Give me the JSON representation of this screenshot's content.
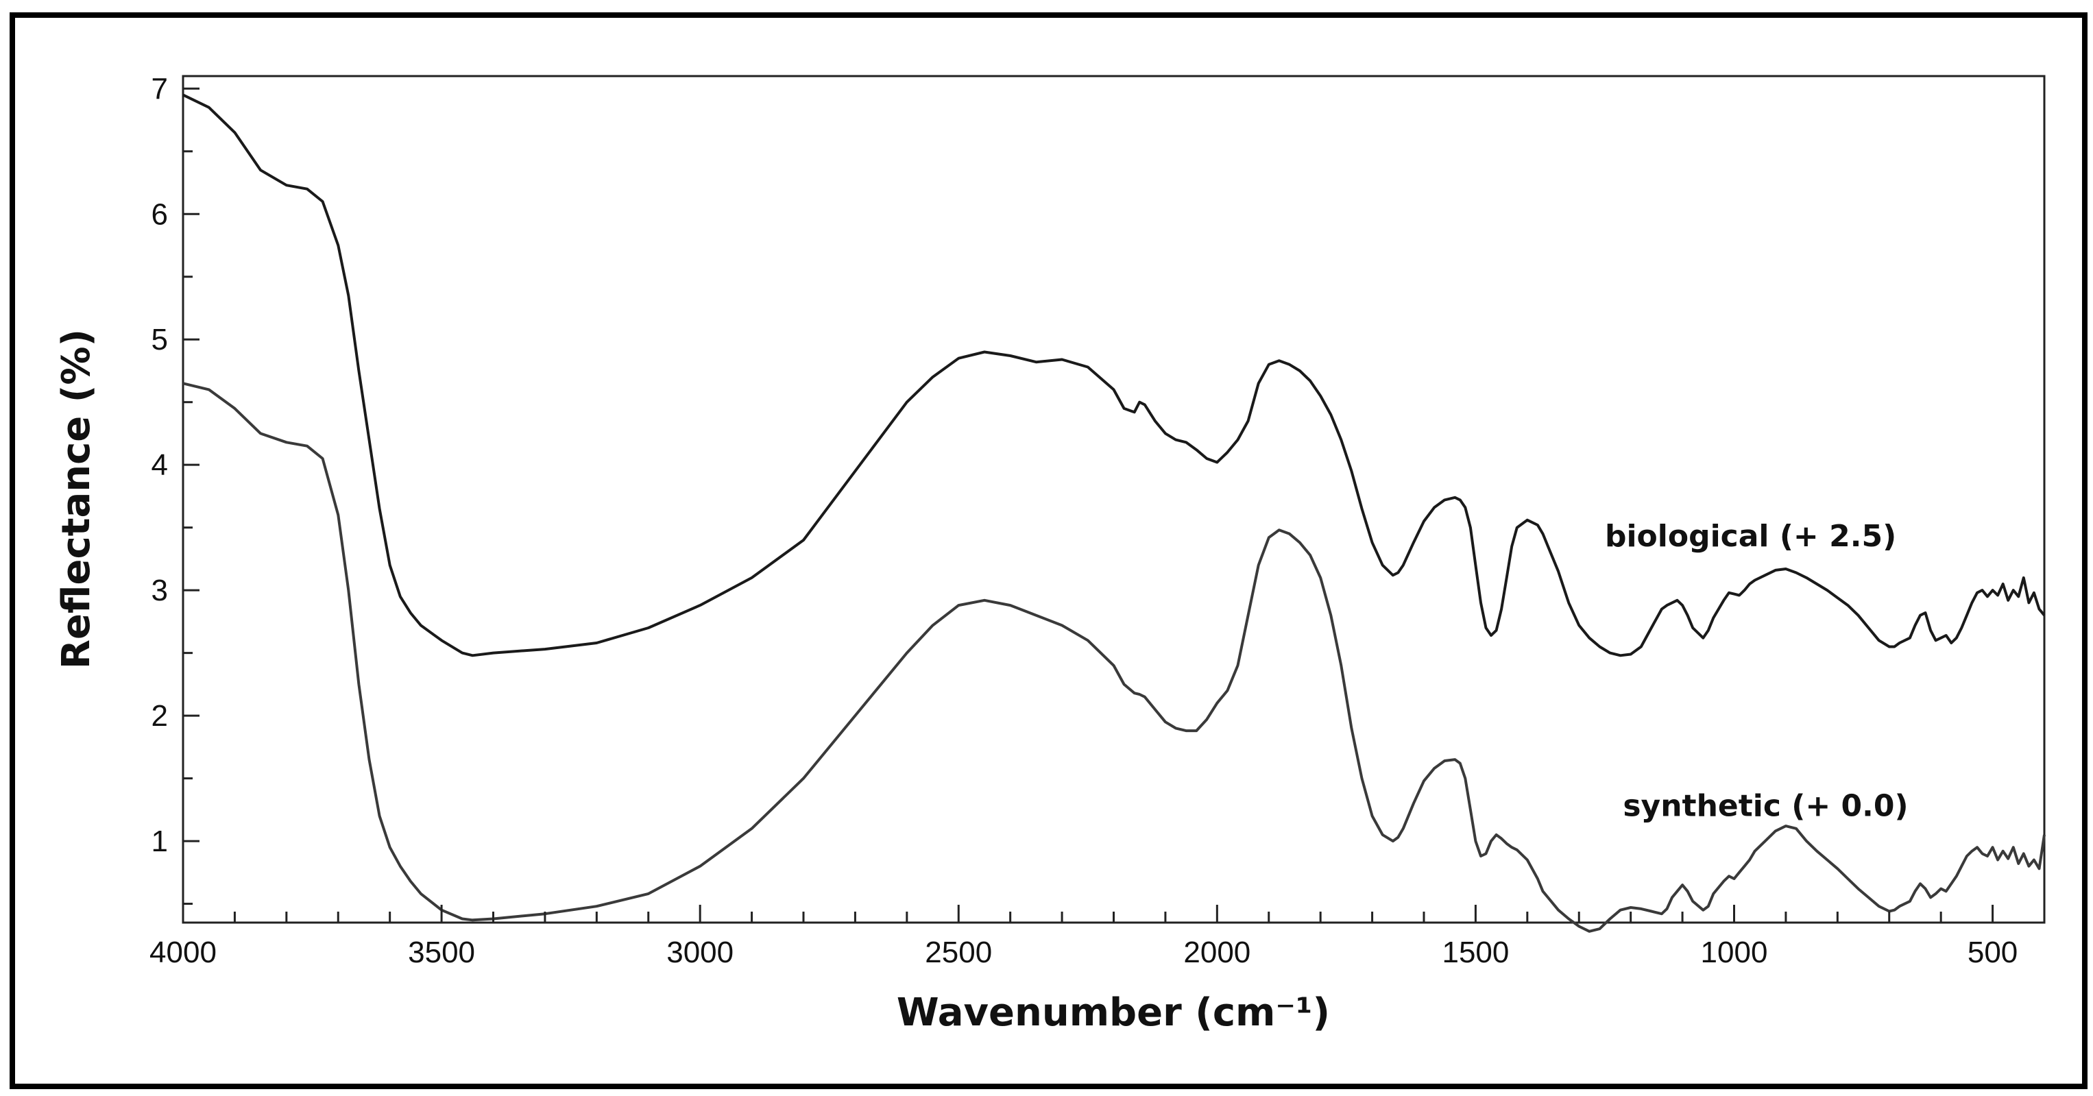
{
  "chart_data": {
    "type": "line",
    "xlabel": "Wavenumber (cm⁻¹)",
    "ylabel": "Reflectance (%)",
    "xlim": [
      4000,
      400
    ],
    "ylim": [
      0.35,
      7.1
    ],
    "x_reversed": true,
    "x_ticks": [
      4000,
      3500,
      3000,
      2500,
      2000,
      1500,
      1000,
      500
    ],
    "x_tick_labels": [
      "4000",
      "3500",
      "3000",
      "2500",
      "2000",
      "1500",
      "1000",
      "500"
    ],
    "y_ticks": [
      1,
      2,
      3,
      4,
      5,
      6,
      7
    ],
    "y_tick_labels": [
      "1",
      "2",
      "3",
      "4",
      "5",
      "6",
      "7"
    ],
    "grid": false,
    "legend": "none",
    "annotations": [
      {
        "text": "biological  (+ 2.5)",
        "x": 1250,
        "y": 3.35
      },
      {
        "text": "synthetic (+ 0.0)",
        "x": 1215,
        "y": 1.2
      }
    ],
    "series": [
      {
        "color": "#1a1a1a",
        "x": [
          4000,
          3950,
          3900,
          3850,
          3800,
          3760,
          3730,
          3700,
          3680,
          3660,
          3640,
          3620,
          3600,
          3580,
          3560,
          3540,
          3500,
          3460,
          3440,
          3400,
          3300,
          3200,
          3100,
          3000,
          2900,
          2800,
          2700,
          2600,
          2550,
          2500,
          2450,
          2400,
          2350,
          2300,
          2250,
          2200,
          2180,
          2160,
          2150,
          2140,
          2120,
          2100,
          2080,
          2060,
          2040,
          2020,
          2000,
          1980,
          1960,
          1940,
          1920,
          1900,
          1880,
          1860,
          1840,
          1820,
          1800,
          1780,
          1760,
          1740,
          1720,
          1700,
          1680,
          1660,
          1650,
          1640,
          1620,
          1600,
          1580,
          1560,
          1540,
          1530,
          1520,
          1510,
          1500,
          1490,
          1480,
          1470,
          1460,
          1450,
          1440,
          1430,
          1420,
          1400,
          1380,
          1370,
          1360,
          1340,
          1320,
          1300,
          1280,
          1260,
          1240,
          1220,
          1200,
          1180,
          1160,
          1140,
          1130,
          1120,
          1110,
          1100,
          1090,
          1080,
          1060,
          1050,
          1040,
          1020,
          1010,
          1000,
          990,
          980,
          970,
          960,
          940,
          920,
          900,
          880,
          860,
          840,
          820,
          800,
          780,
          760,
          740,
          720,
          700,
          690,
          680,
          660,
          650,
          640,
          630,
          620,
          610,
          600,
          590,
          580,
          570,
          560,
          550,
          540,
          530,
          520,
          510,
          500,
          490,
          480,
          470,
          460,
          450,
          440,
          430,
          420,
          410,
          400
        ],
        "y": [
          6.95,
          6.85,
          6.65,
          6.35,
          6.23,
          6.2,
          6.1,
          5.75,
          5.35,
          4.75,
          4.2,
          3.65,
          3.2,
          2.95,
          2.82,
          2.72,
          2.6,
          2.5,
          2.48,
          2.5,
          2.53,
          2.58,
          2.7,
          2.88,
          3.1,
          3.4,
          3.95,
          4.5,
          4.7,
          4.85,
          4.9,
          4.87,
          4.82,
          4.84,
          4.78,
          4.6,
          4.45,
          4.42,
          4.5,
          4.48,
          4.35,
          4.25,
          4.2,
          4.18,
          4.12,
          4.05,
          4.02,
          4.1,
          4.2,
          4.35,
          4.65,
          4.8,
          4.83,
          4.8,
          4.75,
          4.67,
          4.55,
          4.4,
          4.2,
          3.95,
          3.65,
          3.38,
          3.2,
          3.12,
          3.14,
          3.2,
          3.38,
          3.55,
          3.66,
          3.72,
          3.74,
          3.72,
          3.66,
          3.5,
          3.2,
          2.9,
          2.7,
          2.64,
          2.68,
          2.85,
          3.1,
          3.35,
          3.5,
          3.56,
          3.52,
          3.45,
          3.35,
          3.15,
          2.9,
          2.72,
          2.62,
          2.55,
          2.5,
          2.48,
          2.49,
          2.55,
          2.7,
          2.85,
          2.88,
          2.9,
          2.92,
          2.88,
          2.8,
          2.7,
          2.62,
          2.68,
          2.78,
          2.92,
          2.98,
          2.97,
          2.96,
          3,
          3.05,
          3.08,
          3.12,
          3.16,
          3.17,
          3.14,
          3.1,
          3.05,
          3.0,
          2.94,
          2.88,
          2.8,
          2.7,
          2.6,
          2.55,
          2.55,
          2.58,
          2.62,
          2.72,
          2.8,
          2.82,
          2.68,
          2.6,
          2.62,
          2.64,
          2.58,
          2.62,
          2.7,
          2.8,
          2.9,
          2.98,
          3.0,
          2.95,
          3.0,
          2.96,
          3.05,
          2.92,
          3.0,
          2.95,
          3.1,
          2.9,
          2.98,
          2.85,
          2.8
        ]
      },
      {
        "color": "#3a3a3a",
        "x": [
          4000,
          3950,
          3900,
          3850,
          3800,
          3760,
          3730,
          3700,
          3680,
          3660,
          3640,
          3620,
          3600,
          3580,
          3560,
          3540,
          3500,
          3460,
          3440,
          3400,
          3300,
          3200,
          3100,
          3000,
          2900,
          2800,
          2700,
          2600,
          2550,
          2500,
          2450,
          2400,
          2350,
          2300,
          2250,
          2200,
          2180,
          2160,
          2150,
          2140,
          2120,
          2100,
          2080,
          2060,
          2040,
          2020,
          2000,
          1980,
          1960,
          1940,
          1920,
          1900,
          1880,
          1860,
          1840,
          1820,
          1800,
          1780,
          1760,
          1740,
          1720,
          1700,
          1680,
          1660,
          1650,
          1640,
          1620,
          1600,
          1580,
          1560,
          1540,
          1530,
          1520,
          1510,
          1500,
          1490,
          1480,
          1470,
          1460,
          1450,
          1440,
          1430,
          1420,
          1400,
          1380,
          1370,
          1360,
          1340,
          1320,
          1300,
          1280,
          1260,
          1240,
          1220,
          1200,
          1180,
          1160,
          1140,
          1130,
          1120,
          1110,
          1100,
          1090,
          1080,
          1060,
          1050,
          1040,
          1020,
          1010,
          1000,
          990,
          980,
          970,
          960,
          940,
          920,
          900,
          880,
          860,
          840,
          820,
          800,
          780,
          760,
          740,
          720,
          700,
          690,
          680,
          660,
          650,
          640,
          630,
          620,
          610,
          600,
          590,
          580,
          570,
          560,
          550,
          540,
          530,
          520,
          510,
          500,
          490,
          480,
          470,
          460,
          450,
          440,
          430,
          420,
          410,
          400
        ],
        "y": [
          4.65,
          4.6,
          4.45,
          4.25,
          4.18,
          4.15,
          4.05,
          3.6,
          3.0,
          2.25,
          1.65,
          1.2,
          0.95,
          0.8,
          0.68,
          0.58,
          0.45,
          0.38,
          0.37,
          0.38,
          0.42,
          0.48,
          0.58,
          0.8,
          1.1,
          1.5,
          2.0,
          2.5,
          2.72,
          2.88,
          2.92,
          2.88,
          2.8,
          2.72,
          2.6,
          2.4,
          2.25,
          2.18,
          2.17,
          2.15,
          2.05,
          1.95,
          1.9,
          1.88,
          1.88,
          1.97,
          2.1,
          2.2,
          2.4,
          2.8,
          3.2,
          3.42,
          3.48,
          3.45,
          3.38,
          3.28,
          3.1,
          2.8,
          2.4,
          1.9,
          1.5,
          1.2,
          1.05,
          1.0,
          1.03,
          1.1,
          1.3,
          1.48,
          1.58,
          1.64,
          1.65,
          1.62,
          1.5,
          1.25,
          1.0,
          0.88,
          0.9,
          1.0,
          1.05,
          1.02,
          0.98,
          0.95,
          0.93,
          0.85,
          0.7,
          0.6,
          0.55,
          0.45,
          0.38,
          0.32,
          0.28,
          0.3,
          0.38,
          0.45,
          0.47,
          0.46,
          0.44,
          0.42,
          0.46,
          0.55,
          0.6,
          0.65,
          0.6,
          0.52,
          0.45,
          0.48,
          0.58,
          0.68,
          0.72,
          0.7,
          0.75,
          0.8,
          0.85,
          0.92,
          1.0,
          1.08,
          1.12,
          1.1,
          1.0,
          0.92,
          0.85,
          0.78,
          0.7,
          0.62,
          0.55,
          0.48,
          0.44,
          0.45,
          0.48,
          0.52,
          0.6,
          0.66,
          0.62,
          0.55,
          0.58,
          0.62,
          0.6,
          0.66,
          0.72,
          0.8,
          0.88,
          0.92,
          0.95,
          0.9,
          0.88,
          0.95,
          0.85,
          0.92,
          0.86,
          0.95,
          0.82,
          0.9,
          0.8,
          0.85,
          0.78,
          1.05
        ]
      }
    ]
  }
}
